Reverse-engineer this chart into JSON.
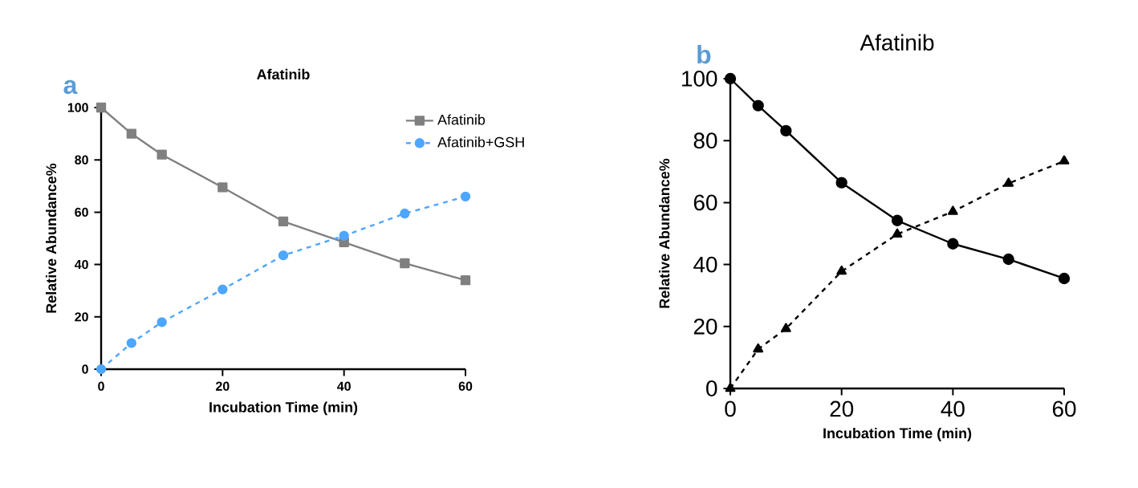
{
  "chart_data": [
    {
      "type": "line",
      "title": "Afatinib",
      "xlabel": "Incubation Time (min)",
      "ylabel": "Relative Abundance%",
      "annotations": [
        "a"
      ],
      "x": [
        0,
        5,
        10,
        20,
        30,
        40,
        50,
        60
      ],
      "xlim": [
        0,
        60
      ],
      "ylim": [
        0,
        100
      ],
      "xticks": [
        0,
        20,
        40,
        60
      ],
      "yticks": [
        0,
        20,
        40,
        60,
        80,
        100
      ],
      "legend": "top right",
      "series": [
        {
          "name": "Afatinib",
          "color": "#808080",
          "marker": "square",
          "line_style": "solid",
          "values": [
            100,
            90,
            82,
            69.5,
            56.5,
            48.5,
            40.5,
            34
          ]
        },
        {
          "name": "Afatinib+GSH",
          "color": "#4da6ff",
          "marker": "circle",
          "line_style": "dashed",
          "values": [
            0,
            10,
            18,
            30.5,
            43.5,
            51,
            59.5,
            66
          ]
        }
      ]
    },
    {
      "type": "line",
      "title": "Afatinib",
      "xlabel": "Incubation Time (min)",
      "ylabel": "Relative Abundance%",
      "annotations": [
        "b"
      ],
      "x": [
        0,
        5,
        10,
        20,
        30,
        40,
        50,
        60
      ],
      "xlim": [
        0,
        60
      ],
      "ylim": [
        0,
        100
      ],
      "xticks": [
        0,
        20,
        40,
        60
      ],
      "yticks": [
        0,
        20,
        40,
        60,
        80,
        100
      ],
      "series": [
        {
          "color": "#000000",
          "marker": "circle",
          "line_style": "solid",
          "values": [
            100,
            91.3,
            83.2,
            66.4,
            54.2,
            46.7,
            41.7,
            35.5
          ]
        },
        {
          "color": "#000000",
          "marker": "triangle",
          "line_style": "dashed",
          "values": [
            0,
            12.7,
            19.3,
            37.8,
            49.8,
            57.1,
            66.2,
            73.4
          ]
        }
      ]
    }
  ]
}
